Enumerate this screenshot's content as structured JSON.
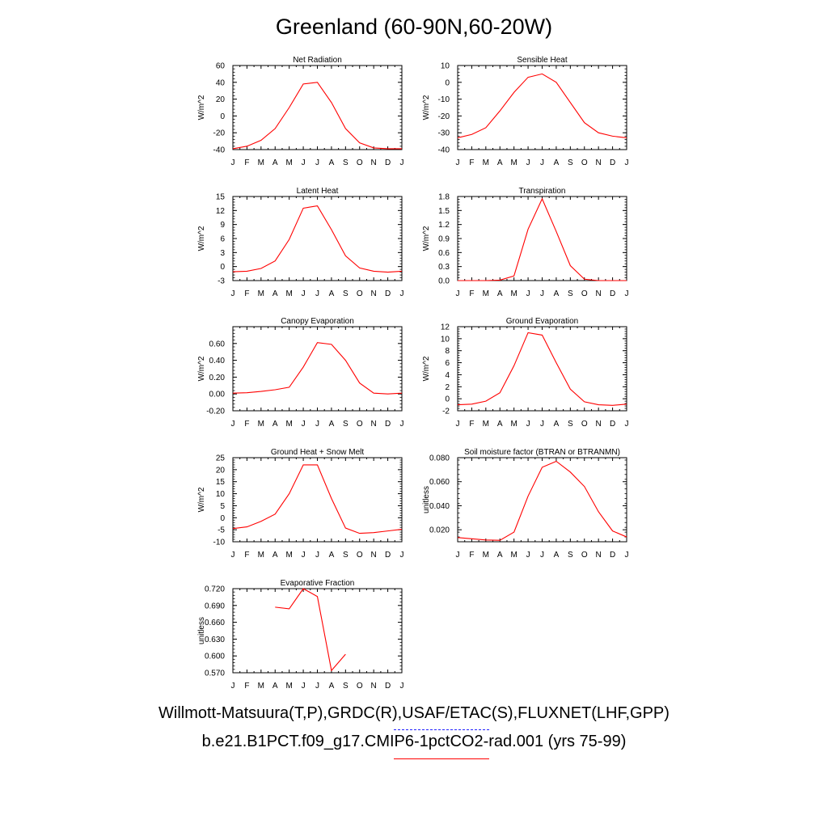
{
  "title": "Greenland (60-90N,60-20W)",
  "legend": {
    "observed_label": "Willmott-Matsuura(T,P),GRDC(R),USAF/ETAC(S),FLUXNET(LHF,GPP)",
    "model_label": "b.e21.B1PCT.f09_g17.CMIP6-1pctCO2-rad.001 (yrs 75-99)",
    "observed_color": "#2222ff",
    "model_color": "#ff0000"
  },
  "chart_data": [
    {
      "type": "line",
      "title": "Net Radiation",
      "ylabel": "W/m^2",
      "categories": [
        "J",
        "F",
        "M",
        "A",
        "M",
        "J",
        "J",
        "A",
        "S",
        "O",
        "N",
        "D",
        "J"
      ],
      "ylim": [
        -40,
        60
      ],
      "yticks": [
        "-40",
        "-20",
        "0",
        "20",
        "40",
        "60"
      ],
      "series": [
        {
          "values": [
            -39,
            -36,
            -29,
            -15,
            10,
            38,
            40,
            16,
            -15,
            -32,
            -38,
            -39,
            -39
          ]
        }
      ]
    },
    {
      "type": "line",
      "title": "Sensible Heat",
      "ylabel": "W/m^2",
      "categories": [
        "J",
        "F",
        "M",
        "A",
        "M",
        "J",
        "J",
        "A",
        "S",
        "O",
        "N",
        "D",
        "J"
      ],
      "ylim": [
        -40,
        10
      ],
      "yticks": [
        "-40",
        "-30",
        "-20",
        "-10",
        "0",
        "10"
      ],
      "series": [
        {
          "values": [
            -33,
            -31,
            -27,
            -17,
            -6,
            3,
            5,
            0,
            -12,
            -24,
            -30,
            -32,
            -33
          ]
        }
      ]
    },
    {
      "type": "line",
      "title": "Latent Heat",
      "ylabel": "W/m^2",
      "categories": [
        "J",
        "F",
        "M",
        "A",
        "M",
        "J",
        "J",
        "A",
        "S",
        "O",
        "N",
        "D",
        "J"
      ],
      "ylim": [
        -3,
        15
      ],
      "yticks": [
        "-3",
        "0",
        "3",
        "6",
        "9",
        "12",
        "15"
      ],
      "series": [
        {
          "values": [
            -1.1,
            -1.0,
            -0.4,
            1.2,
            5.8,
            12.5,
            13.0,
            7.9,
            2.3,
            -0.3,
            -1.0,
            -1.2,
            -1.0
          ]
        }
      ]
    },
    {
      "type": "line",
      "title": "Transpiration",
      "ylabel": "W/m^2",
      "categories": [
        "J",
        "F",
        "M",
        "A",
        "M",
        "J",
        "J",
        "A",
        "S",
        "O",
        "N",
        "D",
        "J"
      ],
      "ylim": [
        0,
        1.8
      ],
      "yticks": [
        "0.0",
        "0.3",
        "0.6",
        "0.9",
        "1.2",
        "1.5",
        "1.8"
      ],
      "series": [
        {
          "values": [
            0.0,
            0.0,
            0.0,
            0.01,
            0.1,
            1.1,
            1.75,
            1.05,
            0.32,
            0.03,
            0.0,
            0.0,
            0.0
          ]
        }
      ]
    },
    {
      "type": "line",
      "title": "Canopy Evaporation",
      "ylabel": "W/m^2",
      "categories": [
        "J",
        "F",
        "M",
        "A",
        "M",
        "J",
        "J",
        "A",
        "S",
        "O",
        "N",
        "D",
        "J"
      ],
      "ylim": [
        -0.2,
        0.8
      ],
      "yticks": [
        "-0.20",
        "0.00",
        "0.20",
        "0.40",
        "0.60"
      ],
      "series": [
        {
          "values": [
            0.01,
            0.015,
            0.03,
            0.05,
            0.08,
            0.32,
            0.61,
            0.59,
            0.4,
            0.13,
            0.01,
            0.0,
            0.01
          ]
        }
      ]
    },
    {
      "type": "line",
      "title": "Ground Evaporation",
      "ylabel": "W/m^2",
      "categories": [
        "J",
        "F",
        "M",
        "A",
        "M",
        "J",
        "J",
        "A",
        "S",
        "O",
        "N",
        "D",
        "J"
      ],
      "ylim": [
        -2,
        12
      ],
      "yticks": [
        "-2",
        "0",
        "2",
        "4",
        "6",
        "8",
        "10",
        "12"
      ],
      "series": [
        {
          "values": [
            -1.0,
            -0.9,
            -0.4,
            1.0,
            5.5,
            11.0,
            10.6,
            6.0,
            1.6,
            -0.5,
            -1.0,
            -1.1,
            -0.9
          ]
        }
      ]
    },
    {
      "type": "line",
      "title": "Ground Heat + Snow Melt",
      "ylabel": "W/m^2",
      "categories": [
        "J",
        "F",
        "M",
        "A",
        "M",
        "J",
        "J",
        "A",
        "S",
        "O",
        "N",
        "D",
        "J"
      ],
      "ylim": [
        -10,
        25
      ],
      "yticks": [
        "-10",
        "-5",
        "0",
        "5",
        "10",
        "15",
        "20",
        "25"
      ],
      "series": [
        {
          "values": [
            -4.5,
            -3.8,
            -1.5,
            1.5,
            10.0,
            22.0,
            22.0,
            8.0,
            -4.3,
            -6.5,
            -6.2,
            -5.5,
            -4.8
          ]
        }
      ]
    },
    {
      "type": "line",
      "title": "Soil moisture factor (BTRAN or BTRANMN)",
      "ylabel": "unitless",
      "categories": [
        "J",
        "F",
        "M",
        "A",
        "M",
        "J",
        "J",
        "A",
        "S",
        "O",
        "N",
        "D",
        "J"
      ],
      "ylim": [
        0.01,
        0.08
      ],
      "yticks": [
        "0.020",
        "0.040",
        "0.060",
        "0.080"
      ],
      "series": [
        {
          "values": [
            0.0135,
            0.0125,
            0.0115,
            0.0112,
            0.018,
            0.048,
            0.072,
            0.077,
            0.068,
            0.056,
            0.035,
            0.019,
            0.014
          ]
        }
      ]
    },
    {
      "type": "line",
      "title": "Evaporative Fraction",
      "ylabel": "unitless",
      "categories": [
        "J",
        "F",
        "M",
        "A",
        "M",
        "J",
        "J",
        "A",
        "S",
        "O",
        "N",
        "D",
        "J"
      ],
      "ylim": [
        0.57,
        0.72
      ],
      "yticks": [
        "0.570",
        "0.600",
        "0.630",
        "0.660",
        "0.690",
        "0.720"
      ],
      "series": [
        {
          "values": [
            null,
            null,
            null,
            0.687,
            0.684,
            0.72,
            0.706,
            0.574,
            0.603,
            null,
            null,
            null,
            null
          ]
        }
      ]
    }
  ]
}
